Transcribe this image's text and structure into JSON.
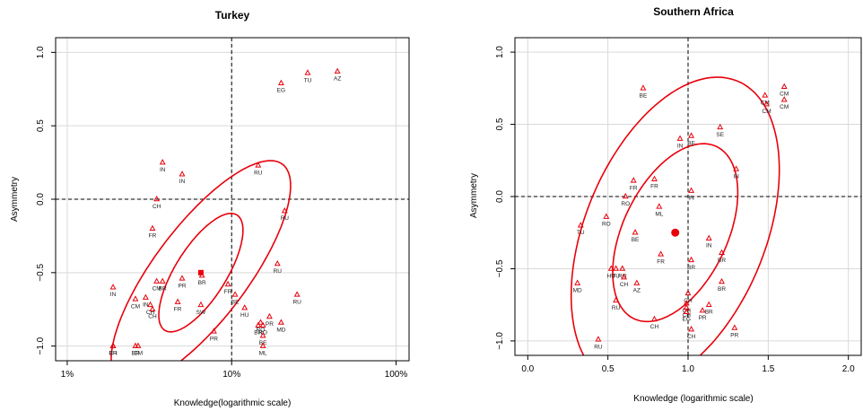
{
  "chart_data": [
    {
      "type": "scatter",
      "title": "Turkey",
      "xlabel": "Knowledge(logarithmic scale)",
      "ylabel": "Asymmetry",
      "x_scale": "log",
      "xlim": [
        0.0085,
        1.2
      ],
      "ylim": [
        -1.1,
        1.1
      ],
      "x_ticks": [
        0.01,
        0.1,
        1.0
      ],
      "x_tick_labels": [
        "1%",
        "10%",
        "100%"
      ],
      "y_ticks": [
        -1.0,
        -0.5,
        0.0,
        0.5,
        1.0
      ],
      "y_tick_labels": [
        "−1.0",
        "−0.5",
        "0.0",
        "0.5",
        "1.0"
      ],
      "grid": true,
      "ref_lines": {
        "x": 0.1,
        "y": 0.0
      },
      "centroid": {
        "x": 0.065,
        "y": -0.5
      },
      "points": [
        {
          "label": "AZ",
          "x": 0.44,
          "y": 0.87
        },
        {
          "label": "TU",
          "x": 0.29,
          "y": 0.86
        },
        {
          "label": "EG",
          "x": 0.2,
          "y": 0.79
        },
        {
          "label": "RU",
          "x": 0.145,
          "y": 0.23
        },
        {
          "label": "IN",
          "x": 0.038,
          "y": 0.25
        },
        {
          "label": "IN",
          "x": 0.05,
          "y": 0.17
        },
        {
          "label": "CH",
          "x": 0.035,
          "y": 0.0
        },
        {
          "label": "RU",
          "x": 0.21,
          "y": -0.08
        },
        {
          "label": "FR",
          "x": 0.033,
          "y": -0.2
        },
        {
          "label": "RU",
          "x": 0.19,
          "y": -0.44
        },
        {
          "label": "BR",
          "x": 0.066,
          "y": -0.52
        },
        {
          "label": "PR",
          "x": 0.05,
          "y": -0.54
        },
        {
          "label": "CM",
          "x": 0.035,
          "y": -0.56
        },
        {
          "label": "BR",
          "x": 0.038,
          "y": -0.56
        },
        {
          "label": "FR",
          "x": 0.095,
          "y": -0.58
        },
        {
          "label": "IN",
          "x": 0.019,
          "y": -0.6
        },
        {
          "label": "BE",
          "x": 0.105,
          "y": -0.65
        },
        {
          "label": "RU",
          "x": 0.25,
          "y": -0.65
        },
        {
          "label": "CM",
          "x": 0.026,
          "y": -0.68
        },
        {
          "label": "IN",
          "x": 0.03,
          "y": -0.67
        },
        {
          "label": "FR",
          "x": 0.047,
          "y": -0.7
        },
        {
          "label": "SW",
          "x": 0.065,
          "y": -0.72
        },
        {
          "label": "HU",
          "x": 0.12,
          "y": -0.74
        },
        {
          "label": "CH",
          "x": 0.032,
          "y": -0.72
        },
        {
          "label": "CH",
          "x": 0.033,
          "y": -0.75
        },
        {
          "label": "PR",
          "x": 0.17,
          "y": -0.8
        },
        {
          "label": "MD",
          "x": 0.2,
          "y": -0.84
        },
        {
          "label": "RO",
          "x": 0.15,
          "y": -0.84
        },
        {
          "label": "BR",
          "x": 0.145,
          "y": -0.86
        },
        {
          "label": "RO",
          "x": 0.155,
          "y": -0.86
        },
        {
          "label": "PR",
          "x": 0.078,
          "y": -0.9
        },
        {
          "label": "BE",
          "x": 0.155,
          "y": -0.93
        },
        {
          "label": "ML",
          "x": 0.155,
          "y": -1.0
        },
        {
          "label": "BR",
          "x": 0.019,
          "y": -1.0
        },
        {
          "label": "CH",
          "x": 0.019,
          "y": -1.0
        },
        {
          "label": "BR",
          "x": 0.026,
          "y": -1.0
        },
        {
          "label": "CM",
          "x": 0.027,
          "y": -1.0
        }
      ]
    },
    {
      "type": "scatter",
      "title": "Southern Africa",
      "xlabel": "Knowledge (logarithmic scale)",
      "ylabel": "Asymmetry",
      "x_scale": "linear",
      "xlim": [
        -0.08,
        2.08
      ],
      "ylim": [
        -1.1,
        1.1
      ],
      "x_ticks": [
        0.0,
        0.5,
        1.0,
        1.5,
        2.0
      ],
      "x_tick_labels": [
        "0.0",
        "0.5",
        "1.0",
        "1.5",
        "2.0"
      ],
      "y_ticks": [
        -1.0,
        -0.5,
        0.0,
        0.5,
        1.0
      ],
      "y_tick_labels": [
        "−1.0",
        "−0.5",
        "0.0",
        "0.5",
        "1.0"
      ],
      "grid": true,
      "ref_lines": {
        "x": 1.0,
        "y": 0.0
      },
      "centroid": {
        "x": 0.92,
        "y": -0.25
      },
      "points": [
        {
          "label": "CM",
          "x": 1.6,
          "y": 0.76
        },
        {
          "label": "CM",
          "x": 1.48,
          "y": 0.7
        },
        {
          "label": "CM",
          "x": 1.6,
          "y": 0.67
        },
        {
          "label": "CM",
          "x": 1.49,
          "y": 0.64
        },
        {
          "label": "BE",
          "x": 0.72,
          "y": 0.75
        },
        {
          "label": "SE",
          "x": 1.2,
          "y": 0.48
        },
        {
          "label": "BE",
          "x": 1.02,
          "y": 0.42
        },
        {
          "label": "IN",
          "x": 0.95,
          "y": 0.4
        },
        {
          "label": "IN",
          "x": 1.3,
          "y": 0.19
        },
        {
          "label": "FR",
          "x": 0.66,
          "y": 0.11
        },
        {
          "label": "FR",
          "x": 0.79,
          "y": 0.12
        },
        {
          "label": "IN",
          "x": 1.02,
          "y": 0.04
        },
        {
          "label": "RO",
          "x": 0.61,
          "y": 0.0
        },
        {
          "label": "ML",
          "x": 0.82,
          "y": -0.07
        },
        {
          "label": "RO",
          "x": 0.49,
          "y": -0.14
        },
        {
          "label": "TU",
          "x": 0.33,
          "y": -0.2
        },
        {
          "label": "BE",
          "x": 0.67,
          "y": -0.25
        },
        {
          "label": "IN",
          "x": 1.13,
          "y": -0.29
        },
        {
          "label": "BR",
          "x": 1.21,
          "y": -0.39
        },
        {
          "label": "FR",
          "x": 0.83,
          "y": -0.4
        },
        {
          "label": "BR",
          "x": 1.02,
          "y": -0.44
        },
        {
          "label": "HU",
          "x": 0.52,
          "y": -0.5
        },
        {
          "label": "TU",
          "x": 0.55,
          "y": -0.5
        },
        {
          "label": "RO",
          "x": 0.59,
          "y": -0.5
        },
        {
          "label": "CH",
          "x": 0.6,
          "y": -0.56
        },
        {
          "label": "MD",
          "x": 0.31,
          "y": -0.6
        },
        {
          "label": "AZ",
          "x": 0.68,
          "y": -0.6
        },
        {
          "label": "BR",
          "x": 1.21,
          "y": -0.59
        },
        {
          "label": "CH",
          "x": 1.0,
          "y": -0.67
        },
        {
          "label": "RU",
          "x": 0.55,
          "y": -0.72
        },
        {
          "label": "CH",
          "x": 0.99,
          "y": -0.74
        },
        {
          "label": "BR",
          "x": 1.13,
          "y": -0.75
        },
        {
          "label": "CH",
          "x": 0.99,
          "y": -0.77
        },
        {
          "label": "PR",
          "x": 1.09,
          "y": -0.79
        },
        {
          "label": "EG",
          "x": 0.99,
          "y": -0.8
        },
        {
          "label": "CH",
          "x": 0.79,
          "y": -0.85
        },
        {
          "label": "CH",
          "x": 1.02,
          "y": -0.92
        },
        {
          "label": "PR",
          "x": 1.29,
          "y": -0.91
        },
        {
          "label": "RU",
          "x": 0.44,
          "y": -0.99
        }
      ]
    }
  ]
}
